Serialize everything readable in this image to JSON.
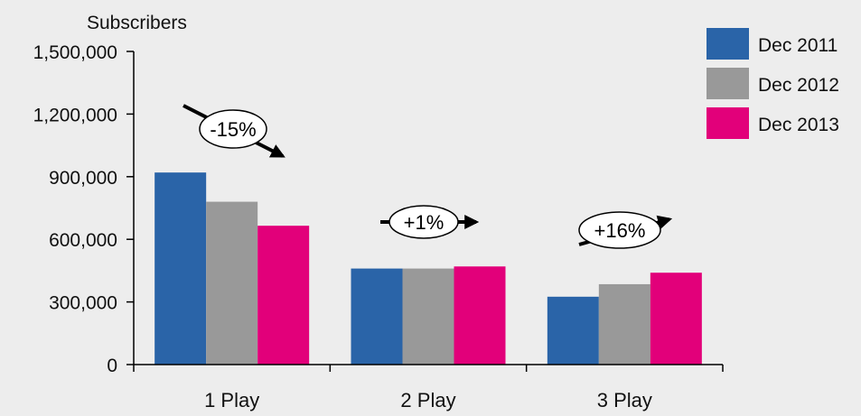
{
  "chart_data": {
    "type": "bar",
    "ylabel": "Subscribers",
    "categories": [
      "1 Play",
      "2 Play",
      "3 Play"
    ],
    "series": [
      {
        "name": "Dec 2011",
        "color": "#2a64a8",
        "values": [
          920000,
          460000,
          325000
        ]
      },
      {
        "name": "Dec 2012",
        "color": "#999999",
        "values": [
          780000,
          460000,
          385000
        ]
      },
      {
        "name": "Dec 2013",
        "color": "#e2007a",
        "values": [
          665000,
          470000,
          440000
        ]
      }
    ],
    "ylim": [
      0,
      1500000
    ],
    "yticks": [
      0,
      300000,
      600000,
      900000,
      1200000,
      1500000
    ],
    "ytick_labels": [
      "0",
      "300,000",
      "600,000",
      "900,000",
      "1,200,000",
      "1,500,000"
    ],
    "legend_position": "top-right",
    "grid": false,
    "annotations": [
      {
        "text": "-15%",
        "category": "1 Play",
        "trend": "down"
      },
      {
        "text": "+1%",
        "category": "2 Play",
        "trend": "flat"
      },
      {
        "text": "+16%",
        "category": "3 Play",
        "trend": "up"
      }
    ]
  }
}
